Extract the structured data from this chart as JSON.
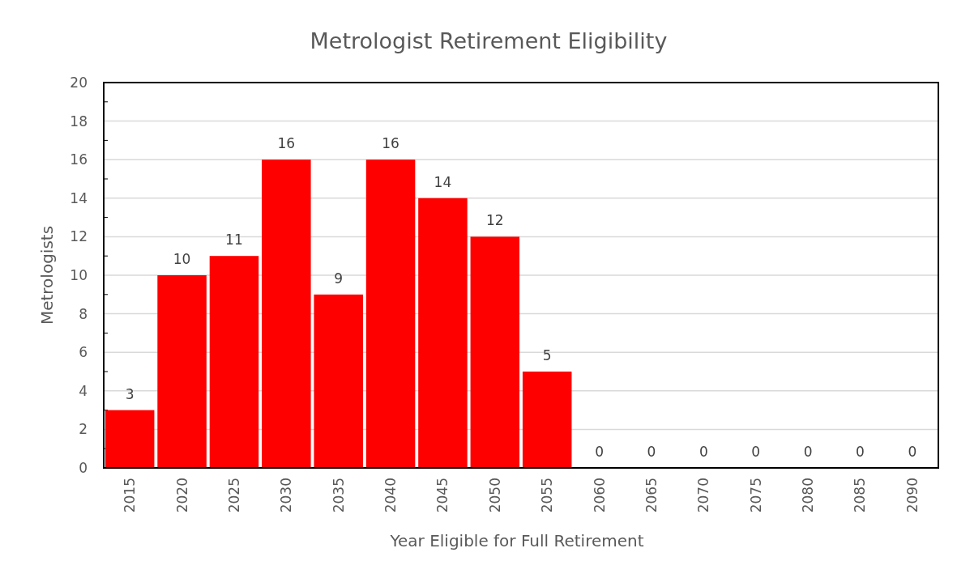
{
  "chart_data": {
    "type": "bar",
    "title": "Metrologist Retirement Eligibility",
    "xlabel": "Year Eligible for Full Retirement",
    "ylabel": "Metrologists",
    "categories": [
      "2015",
      "2020",
      "2025",
      "2030",
      "2035",
      "2040",
      "2045",
      "2050",
      "2055",
      "2060",
      "2065",
      "2070",
      "2075",
      "2080",
      "2085",
      "2090"
    ],
    "values": [
      3,
      10,
      11,
      16,
      9,
      16,
      14,
      12,
      5,
      0,
      0,
      0,
      0,
      0,
      0,
      0
    ],
    "color": "#ff0000",
    "data_labels": true,
    "ylim": [
      0,
      20
    ],
    "yticks": [
      0,
      {
        "value": 1,
        "label": null
      },
      2,
      {
        "value": 3,
        "label": null
      },
      4,
      {
        "value": 5,
        "label": null
      },
      6,
      {
        "value": 7,
        "label": null
      },
      8,
      {
        "value": 9,
        "label": null
      },
      10,
      {
        "value": 11,
        "label": null
      },
      12,
      {
        "value": 13,
        "label": null
      },
      14,
      {
        "value": 15,
        "label": null
      },
      16,
      {
        "value": 17,
        "label": null
      },
      18,
      {
        "value": 19,
        "label": null
      },
      20
    ],
    "grid": "y"
  }
}
